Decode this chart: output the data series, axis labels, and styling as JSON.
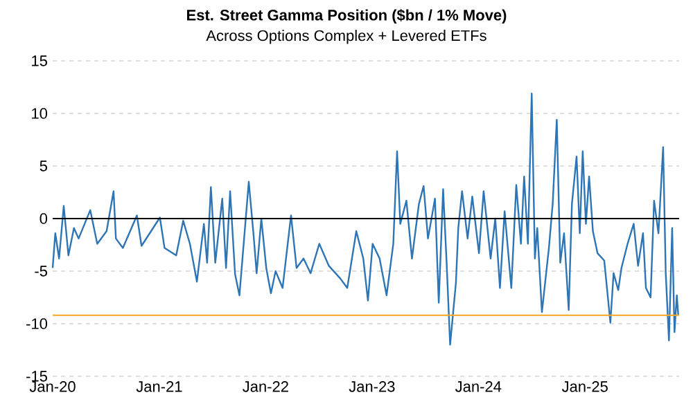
{
  "chart_data": {
    "type": "line",
    "title": "Est. Street Gamma Position ($bn / 1% Move)",
    "subtitle": "Across Options Complex + Levered ETFs",
    "x": [
      "2020-01-01",
      "2020-01-10",
      "2020-01-23",
      "2020-02-08",
      "2020-02-24",
      "2020-03-14",
      "2020-03-30",
      "2020-05-09",
      "2020-06-02",
      "2020-07-04",
      "2020-07-28",
      "2020-08-05",
      "2020-08-29",
      "2020-10-16",
      "2020-11-01",
      "2021-01-03",
      "2021-01-19",
      "2021-02-28",
      "2021-03-24",
      "2021-04-16",
      "2021-05-10",
      "2021-06-03",
      "2021-06-14",
      "2021-06-27",
      "2021-07-12",
      "2021-08-05",
      "2021-08-18",
      "2021-09-01",
      "2021-09-18",
      "2021-10-03",
      "2021-11-04",
      "2021-11-20",
      "2021-12-01",
      "2021-12-17",
      "2022-01-03",
      "2022-01-19",
      "2022-02-04",
      "2022-02-28",
      "2022-03-29",
      "2022-04-17",
      "2022-05-11",
      "2022-06-04",
      "2022-07-04",
      "2022-08-06",
      "2022-09-14",
      "2022-10-08",
      "2022-11-08",
      "2022-12-02",
      "2022-12-18",
      "2023-01-03",
      "2023-01-27",
      "2023-02-20",
      "2023-03-15",
      "2023-03-28",
      "2023-04-08",
      "2023-04-29",
      "2023-05-18",
      "2023-06-11",
      "2023-06-27",
      "2023-07-12",
      "2023-08-05",
      "2023-08-18",
      "2023-09-02",
      "2023-09-14",
      "2023-09-26",
      "2023-10-16",
      "2023-10-24",
      "2023-11-06",
      "2023-11-25",
      "2023-12-11",
      "2024-01-03",
      "2024-01-19",
      "2024-02-12",
      "2024-02-28",
      "2024-03-15",
      "2024-03-31",
      "2024-04-23",
      "2024-05-10",
      "2024-05-26",
      "2024-06-06",
      "2024-06-19",
      "2024-07-02",
      "2024-07-13",
      "2024-07-21",
      "2024-08-06",
      "2024-08-30",
      "2024-09-12",
      "2024-09-26",
      "2024-10-08",
      "2024-10-21",
      "2024-11-06",
      "2024-11-17",
      "2024-12-03",
      "2024-12-14",
      "2024-12-24",
      "2025-01-04",
      "2025-01-15",
      "2025-01-28",
      "2025-02-13",
      "2025-03-08",
      "2025-03-29",
      "2025-04-09",
      "2025-04-25",
      "2025-05-06",
      "2025-05-27",
      "2025-06-17",
      "2025-07-02",
      "2025-07-19",
      "2025-07-29",
      "2025-08-14",
      "2025-08-26",
      "2025-09-10",
      "2025-09-26",
      "2025-10-05",
      "2025-10-16",
      "2025-10-27",
      "2025-11-04",
      "2025-11-12",
      "2025-11-17"
    ],
    "series": [
      {
        "color": "#2e75b6",
        "values": [
          -4.7,
          -1.4,
          -3.8,
          1.2,
          -3.5,
          -0.9,
          -1.9,
          0.8,
          -2.4,
          -1.2,
          2.6,
          -1.9,
          -2.8,
          0.3,
          -2.6,
          0.1,
          -2.8,
          -3.5,
          -0.2,
          -2.4,
          -6.0,
          -0.5,
          -4.2,
          3.0,
          -4.2,
          1.9,
          -4.7,
          2.6,
          -5.3,
          -7.3,
          3.5,
          -1.4,
          -5.2,
          0.0,
          -4.7,
          -7.1,
          -5.0,
          -6.6,
          0.3,
          -4.7,
          -3.8,
          -5.2,
          -2.4,
          -4.5,
          -5.7,
          -6.6,
          -1.2,
          -3.8,
          -7.8,
          -2.4,
          -3.8,
          -7.3,
          -2.4,
          6.4,
          -0.5,
          1.7,
          -3.8,
          1.4,
          3.1,
          -1.9,
          1.9,
          -8.0,
          2.8,
          -4.2,
          -12.0,
          -6.1,
          -0.9,
          2.6,
          -1.9,
          2.1,
          -3.3,
          2.6,
          -3.8,
          0.0,
          -6.6,
          0.7,
          -6.6,
          3.2,
          -2.4,
          4.0,
          -2.4,
          11.9,
          -3.8,
          -0.9,
          -8.9,
          -2.8,
          1.4,
          9.4,
          -4.2,
          -1.4,
          -8.7,
          1.4,
          5.9,
          -1.4,
          6.4,
          -0.5,
          4.0,
          -1.2,
          -3.3,
          -4.0,
          -9.9,
          -5.2,
          -6.8,
          -4.7,
          -2.4,
          -0.5,
          -4.5,
          -1.4,
          -6.6,
          -7.5,
          1.7,
          -1.4,
          6.8,
          -5.2,
          -11.6,
          -0.9,
          -10.8,
          -7.3,
          -9.2
        ]
      }
    ],
    "xlim": [
      "2020-01-01",
      "2025-11-20"
    ],
    "xticks": [
      {
        "value": "2020-01-01",
        "label": "Jan-20"
      },
      {
        "value": "2021-01-01",
        "label": "Jan-21"
      },
      {
        "value": "2022-01-01",
        "label": "Jan-22"
      },
      {
        "value": "2023-01-01",
        "label": "Jan-23"
      },
      {
        "value": "2024-01-01",
        "label": "Jan-24"
      },
      {
        "value": "2025-01-01",
        "label": "Jan-25"
      }
    ],
    "ylim": [
      -15,
      15
    ],
    "yticks": [
      -15,
      -10,
      -5,
      0,
      5,
      10,
      15
    ],
    "grid": "y",
    "ref_lines": [
      {
        "axis": "y",
        "value": 0,
        "color": "#000000"
      },
      {
        "axis": "y",
        "value": -9.2,
        "color": "#f5a623"
      }
    ],
    "line_style": "solid",
    "marker": "none"
  }
}
